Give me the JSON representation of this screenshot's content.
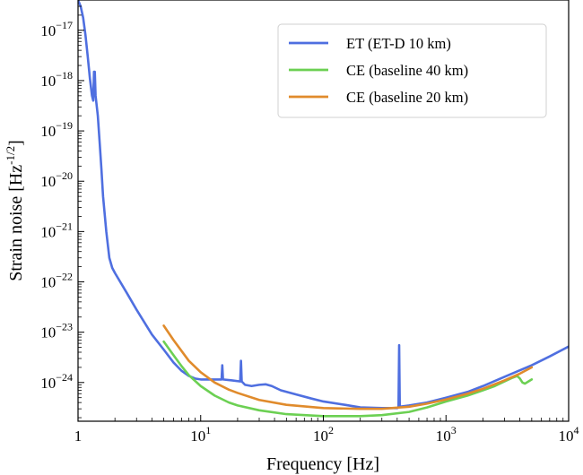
{
  "chart_data": {
    "type": "line",
    "title": "",
    "xlabel": "Frequency [Hz]",
    "ylabel": "Strain noise [Hz",
    "ylabel_sup": "-1/2",
    "ylabel_tail": "]",
    "xscale": "log",
    "yscale": "log",
    "xlim": [
      1,
      10000
    ],
    "ylim": [
      1.7e-25,
      4e-17
    ],
    "grid": false,
    "legend_position": "top-right",
    "x_ticks": [
      {
        "value": 1,
        "label": "1",
        "sup": ""
      },
      {
        "value": 10,
        "label": "10",
        "sup": "1"
      },
      {
        "value": 100,
        "label": "10",
        "sup": "2"
      },
      {
        "value": 1000,
        "label": "10",
        "sup": "3"
      },
      {
        "value": 10000,
        "label": "10",
        "sup": "4"
      }
    ],
    "y_ticks": [
      {
        "value": 1e-24,
        "label": "10",
        "sup": "−24"
      },
      {
        "value": 1e-23,
        "label": "10",
        "sup": "−23"
      },
      {
        "value": 1e-22,
        "label": "10",
        "sup": "−22"
      },
      {
        "value": 1e-21,
        "label": "10",
        "sup": "−21"
      },
      {
        "value": 1e-20,
        "label": "10",
        "sup": "−20"
      },
      {
        "value": 1e-19,
        "label": "10",
        "sup": "−19"
      },
      {
        "value": 1e-18,
        "label": "10",
        "sup": "−18"
      },
      {
        "value": 1e-17,
        "label": "10",
        "sup": "−17"
      }
    ],
    "series": [
      {
        "name": "ET (ET-D 10 km)",
        "color": "#4f6fe0",
        "points": [
          [
            1.0,
            4e-17
          ],
          [
            1.05,
            3e-17
          ],
          [
            1.1,
            1.8e-17
          ],
          [
            1.15,
            8e-18
          ],
          [
            1.2,
            3e-18
          ],
          [
            1.25,
            1.1e-18
          ],
          [
            1.3,
            5e-19
          ],
          [
            1.33,
            4e-19
          ],
          [
            1.35,
            1.5e-18
          ],
          [
            1.37,
            1.5e-18
          ],
          [
            1.39,
            5e-19
          ],
          [
            1.45,
            2e-19
          ],
          [
            1.5,
            6e-20
          ],
          [
            1.55,
            1.8e-20
          ],
          [
            1.6,
            5e-21
          ],
          [
            1.7,
            1e-21
          ],
          [
            1.8,
            3e-22
          ],
          [
            1.9,
            1.9e-22
          ],
          [
            2.0,
            1.5e-22
          ],
          [
            2.5,
            6e-23
          ],
          [
            3.0,
            2.8e-23
          ],
          [
            4.0,
            9e-24
          ],
          [
            5.0,
            4.5e-24
          ],
          [
            6.0,
            2.5e-24
          ],
          [
            7.0,
            1.7e-24
          ],
          [
            8.0,
            1.35e-24
          ],
          [
            9.0,
            1.2e-24
          ],
          [
            10,
            1.15e-24
          ],
          [
            12,
            1.15e-24
          ],
          [
            14.8,
            1.15e-24
          ],
          [
            15,
            2.2e-24
          ],
          [
            15.2,
            1.15e-24
          ],
          [
            18,
            1.1e-24
          ],
          [
            21,
            1.05e-24
          ],
          [
            21.3,
            2.7e-24
          ],
          [
            21.6,
            1.05e-24
          ],
          [
            23,
            9e-25
          ],
          [
            26,
            8.5e-25
          ],
          [
            30,
            9e-25
          ],
          [
            34,
            9.2e-25
          ],
          [
            38,
            8.5e-25
          ],
          [
            45,
            7e-25
          ],
          [
            60,
            5.8e-25
          ],
          [
            80,
            4.8e-25
          ],
          [
            100,
            4.2e-25
          ],
          [
            150,
            3.6e-25
          ],
          [
            200,
            3.2e-25
          ],
          [
            300,
            3.1e-25
          ],
          [
            400,
            3.1e-25
          ],
          [
            410,
            3.2e-25
          ],
          [
            415,
            5.5e-24
          ],
          [
            420,
            3.3e-25
          ],
          [
            500,
            3.5e-25
          ],
          [
            700,
            4e-25
          ],
          [
            1000,
            5e-25
          ],
          [
            1500,
            6.5e-25
          ],
          [
            2000,
            8.5e-25
          ],
          [
            3000,
            1.3e-24
          ],
          [
            5000,
            2.2e-24
          ],
          [
            7000,
            3.3e-24
          ],
          [
            10000,
            5.2e-24
          ]
        ]
      },
      {
        "name": "CE (baseline 40 km)",
        "color": "#6cd053",
        "points": [
          [
            5,
            6.5e-24
          ],
          [
            6,
            3.5e-24
          ],
          [
            7,
            2.1e-24
          ],
          [
            8,
            1.4e-24
          ],
          [
            10,
            8.5e-25
          ],
          [
            13,
            5.5e-25
          ],
          [
            17,
            4e-25
          ],
          [
            20,
            3.5e-25
          ],
          [
            30,
            2.8e-25
          ],
          [
            50,
            2.35e-25
          ],
          [
            100,
            2.15e-25
          ],
          [
            200,
            2.15e-25
          ],
          [
            300,
            2.25e-25
          ],
          [
            500,
            2.6e-25
          ],
          [
            700,
            3.2e-25
          ],
          [
            1000,
            4.2e-25
          ],
          [
            1500,
            5.5e-25
          ],
          [
            2000,
            7e-25
          ],
          [
            2500,
            8.5e-25
          ],
          [
            3000,
            1.05e-24
          ],
          [
            3500,
            1.25e-24
          ],
          [
            3800,
            1.35e-24
          ],
          [
            4000,
            1.2e-24
          ],
          [
            4200,
            1e-24
          ],
          [
            4400,
            9.5e-25
          ],
          [
            4700,
            1.05e-24
          ],
          [
            5000,
            1.15e-24
          ]
        ]
      },
      {
        "name": "CE (baseline 20 km)",
        "color": "#e08b2c",
        "points": [
          [
            5,
            1.35e-23
          ],
          [
            6,
            7e-24
          ],
          [
            7,
            4.2e-24
          ],
          [
            8,
            2.7e-24
          ],
          [
            10,
            1.6e-24
          ],
          [
            13,
            1e-24
          ],
          [
            17,
            7.2e-25
          ],
          [
            20,
            6.2e-25
          ],
          [
            30,
            4.5e-25
          ],
          [
            50,
            3.6e-25
          ],
          [
            100,
            3.1e-25
          ],
          [
            200,
            3e-25
          ],
          [
            300,
            3e-25
          ],
          [
            500,
            3.3e-25
          ],
          [
            700,
            3.8e-25
          ],
          [
            1000,
            4.6e-25
          ],
          [
            1500,
            6e-25
          ],
          [
            2000,
            7.5e-25
          ],
          [
            3000,
            1.1e-24
          ],
          [
            4000,
            1.5e-24
          ],
          [
            5000,
            2e-24
          ]
        ]
      }
    ]
  }
}
